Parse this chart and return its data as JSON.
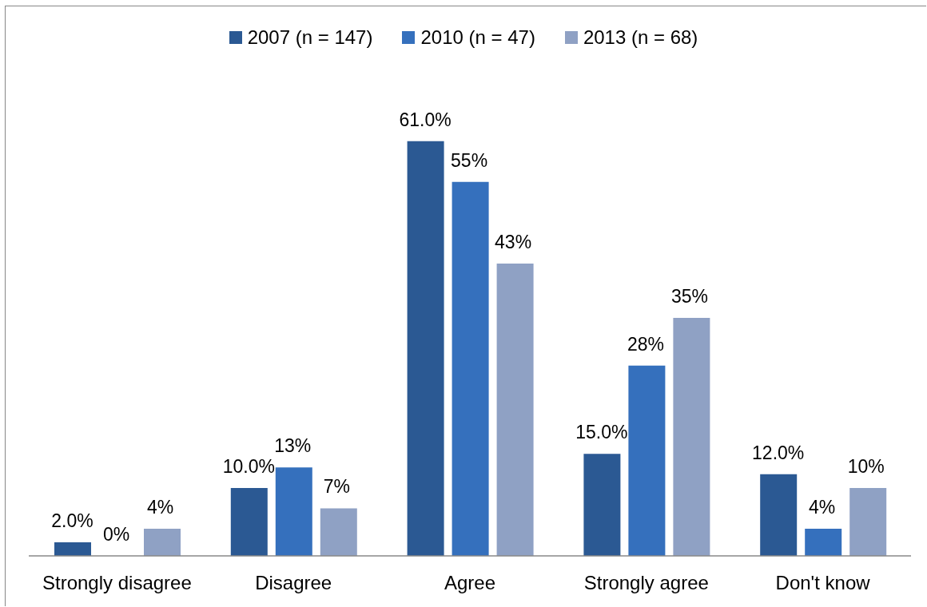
{
  "chart_data": {
    "type": "bar",
    "categories": [
      "Strongly disagree",
      "Disagree",
      "Agree",
      "Strongly agree",
      "Don't know"
    ],
    "series": [
      {
        "name": "2007 (n = 147)",
        "color": "#2b5993",
        "values": [
          2,
          10,
          61,
          15,
          12
        ],
        "value_labels": [
          "2.0%",
          "10.0%",
          "61.0%",
          "15.0%",
          "12.0%"
        ]
      },
      {
        "name": "2010 (n = 47)",
        "color": "#3570bd",
        "values": [
          0,
          13,
          55,
          28,
          4
        ],
        "value_labels": [
          "0%",
          "13%",
          "55%",
          "28%",
          "4%"
        ]
      },
      {
        "name": "2013 (n = 68)",
        "color": "#8fa1c4",
        "values": [
          4,
          7,
          43,
          35,
          10
        ],
        "value_labels": [
          "4%",
          "7%",
          "43%",
          "35%",
          "10%"
        ]
      }
    ],
    "legend": "top",
    "tick_labels": "x"
  }
}
